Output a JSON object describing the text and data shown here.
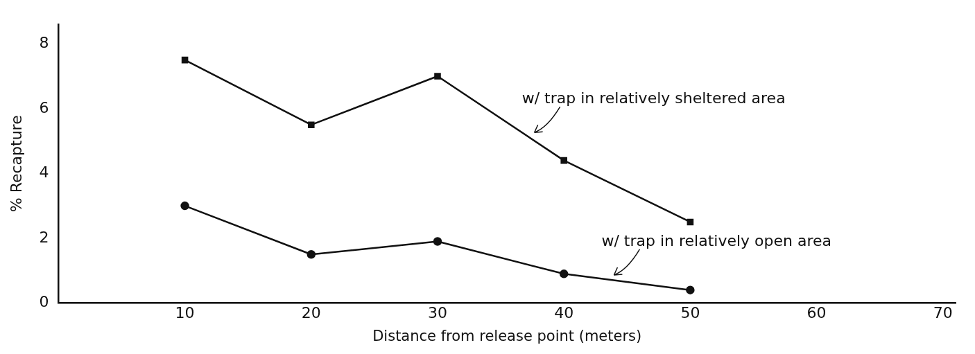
{
  "chart_data": {
    "type": "line",
    "xlabel": "Distance from release point (meters)",
    "ylabel": "% Recapture",
    "x": [
      10,
      20,
      30,
      40,
      50
    ],
    "series": [
      {
        "color": "#111111",
        "marker": "square",
        "values": [
          7.5,
          5.5,
          7.0,
          4.4,
          2.5
        ]
      },
      {
        "color": "#111111",
        "marker": "circle",
        "values": [
          3.0,
          1.5,
          1.9,
          0.9,
          0.4
        ]
      }
    ],
    "xlim": [
      0,
      71
    ],
    "xticks": [
      10,
      20,
      30,
      40,
      50,
      60,
      70
    ],
    "ylim": [
      0,
      8.6
    ],
    "yticks": [
      0,
      2,
      4,
      6,
      8
    ],
    "grid": false,
    "legend": false,
    "annotations": [
      {
        "text": "w/ trap in relatively sheltered area",
        "x": 37.5,
        "y": 5.2
      },
      {
        "text": "w/ trap in relatively open area",
        "x": 43.8,
        "y": 0.8
      }
    ]
  }
}
